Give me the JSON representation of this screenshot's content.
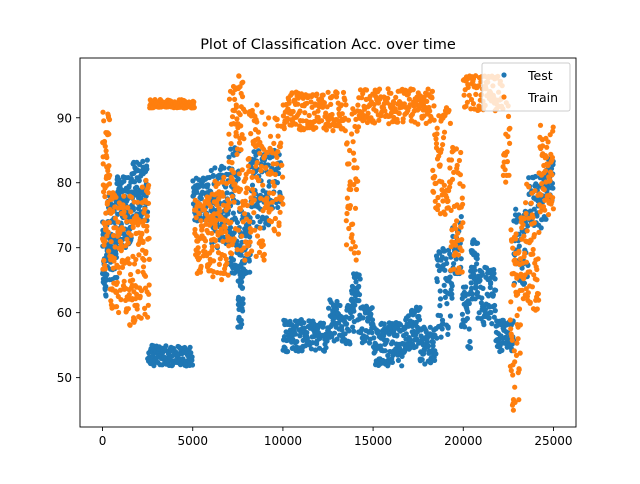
{
  "chart_data": {
    "type": "scatter",
    "title": "Plot of Classification Acc. over time",
    "xlabel": "",
    "ylabel": "",
    "xlim": [
      -1250,
      26250
    ],
    "ylim": [
      42.4,
      99.2
    ],
    "xticks": [
      0,
      5000,
      10000,
      15000,
      20000,
      25000
    ],
    "yticks": [
      50,
      60,
      70,
      80,
      90
    ],
    "grid": false,
    "legend_position": "top-right",
    "series": [
      {
        "name": "Test",
        "color": "#1f77b4",
        "segments": [
          {
            "x0": 0,
            "x1": 300,
            "lo": 62.5,
            "hi": 74,
            "n": 50
          },
          {
            "x0": 300,
            "x1": 800,
            "lo": 65,
            "hi": 78,
            "n": 60
          },
          {
            "x0": 800,
            "x1": 1600,
            "lo": 70,
            "hi": 81,
            "n": 80
          },
          {
            "x0": 1600,
            "x1": 2500,
            "lo": 74,
            "hi": 83.5,
            "n": 90
          },
          {
            "x0": 2500,
            "x1": 5000,
            "lo": 51.8,
            "hi": 55,
            "n": 130
          },
          {
            "x0": 5000,
            "x1": 6000,
            "lo": 74,
            "hi": 81,
            "n": 70
          },
          {
            "x0": 6000,
            "x1": 7000,
            "lo": 70,
            "hi": 83,
            "n": 80
          },
          {
            "x0": 7000,
            "x1": 7600,
            "lo": 66,
            "hi": 86,
            "n": 70
          },
          {
            "x0": 7500,
            "x1": 7800,
            "lo": 57.5,
            "hi": 66,
            "n": 30
          },
          {
            "x0": 7600,
            "x1": 8200,
            "lo": 66,
            "hi": 76,
            "n": 50
          },
          {
            "x0": 8200,
            "x1": 9200,
            "lo": 73,
            "hi": 86,
            "n": 70
          },
          {
            "x0": 9200,
            "x1": 9900,
            "lo": 76,
            "hi": 85,
            "n": 40
          },
          {
            "x0": 10000,
            "x1": 12500,
            "lo": 54,
            "hi": 59,
            "n": 130
          },
          {
            "x0": 12500,
            "x1": 13800,
            "lo": 55,
            "hi": 62,
            "n": 80
          },
          {
            "x0": 13800,
            "x1": 14300,
            "lo": 57,
            "hi": 66,
            "n": 40
          },
          {
            "x0": 14300,
            "x1": 15000,
            "lo": 55,
            "hi": 61,
            "n": 40
          },
          {
            "x0": 15000,
            "x1": 16800,
            "lo": 51.8,
            "hi": 58.5,
            "n": 120
          },
          {
            "x0": 16800,
            "x1": 17600,
            "lo": 54,
            "hi": 61,
            "n": 60
          },
          {
            "x0": 17600,
            "x1": 18500,
            "lo": 52,
            "hi": 58,
            "n": 60
          },
          {
            "x0": 18500,
            "x1": 19400,
            "lo": 56,
            "hi": 70,
            "n": 60
          },
          {
            "x0": 19400,
            "x1": 19900,
            "lo": 66,
            "hi": 75,
            "n": 30
          },
          {
            "x0": 19900,
            "x1": 20400,
            "lo": 54,
            "hi": 64,
            "n": 30
          },
          {
            "x0": 20400,
            "x1": 20800,
            "lo": 62,
            "hi": 71.5,
            "n": 40
          },
          {
            "x0": 20800,
            "x1": 21800,
            "lo": 58,
            "hi": 67,
            "n": 70
          },
          {
            "x0": 21800,
            "x1": 22800,
            "lo": 54,
            "hi": 59,
            "n": 60
          },
          {
            "x0": 22800,
            "x1": 23600,
            "lo": 64,
            "hi": 76,
            "n": 50
          },
          {
            "x0": 23600,
            "x1": 24600,
            "lo": 73,
            "hi": 81,
            "n": 60
          },
          {
            "x0": 24600,
            "x1": 25000,
            "lo": 77,
            "hi": 84,
            "n": 30
          }
        ]
      },
      {
        "name": "Train",
        "color": "#ff7f0e",
        "segments": [
          {
            "x0": 0,
            "x1": 400,
            "lo": 66,
            "hi": 91,
            "n": 60
          },
          {
            "x0": 400,
            "x1": 1300,
            "lo": 60,
            "hi": 79,
            "n": 80
          },
          {
            "x0": 1300,
            "x1": 2200,
            "lo": 58,
            "hi": 78,
            "n": 80
          },
          {
            "x0": 2200,
            "x1": 2600,
            "lo": 59,
            "hi": 81,
            "n": 40
          },
          {
            "x0": 2600,
            "x1": 5100,
            "lo": 91.5,
            "hi": 92.8,
            "n": 120
          },
          {
            "x0": 5100,
            "x1": 6000,
            "lo": 66,
            "hi": 78,
            "n": 70
          },
          {
            "x0": 6000,
            "x1": 7000,
            "lo": 65,
            "hi": 81,
            "n": 80
          },
          {
            "x0": 7000,
            "x1": 7800,
            "lo": 69,
            "hi": 96.5,
            "n": 80
          },
          {
            "x0": 7800,
            "x1": 9000,
            "lo": 68,
            "hi": 92,
            "n": 90
          },
          {
            "x0": 9000,
            "x1": 10000,
            "lo": 72,
            "hi": 90,
            "n": 60
          },
          {
            "x0": 10000,
            "x1": 13500,
            "lo": 88,
            "hi": 94,
            "n": 160
          },
          {
            "x0": 13500,
            "x1": 14200,
            "lo": 68,
            "hi": 92,
            "n": 50
          },
          {
            "x0": 14200,
            "x1": 18300,
            "lo": 89,
            "hi": 94.5,
            "n": 180
          },
          {
            "x0": 18300,
            "x1": 19300,
            "lo": 75,
            "hi": 92,
            "n": 70
          },
          {
            "x0": 19300,
            "x1": 20000,
            "lo": 66,
            "hi": 86,
            "n": 50
          },
          {
            "x0": 20000,
            "x1": 22200,
            "lo": 91,
            "hi": 96.5,
            "n": 90
          },
          {
            "x0": 22200,
            "x1": 22600,
            "lo": 80,
            "hi": 93,
            "n": 20
          },
          {
            "x0": 22600,
            "x1": 23200,
            "lo": 44.5,
            "hi": 73,
            "n": 60
          },
          {
            "x0": 23200,
            "x1": 24200,
            "lo": 60,
            "hi": 80,
            "n": 70
          },
          {
            "x0": 24200,
            "x1": 25000,
            "lo": 75,
            "hi": 89,
            "n": 60
          }
        ]
      }
    ]
  }
}
